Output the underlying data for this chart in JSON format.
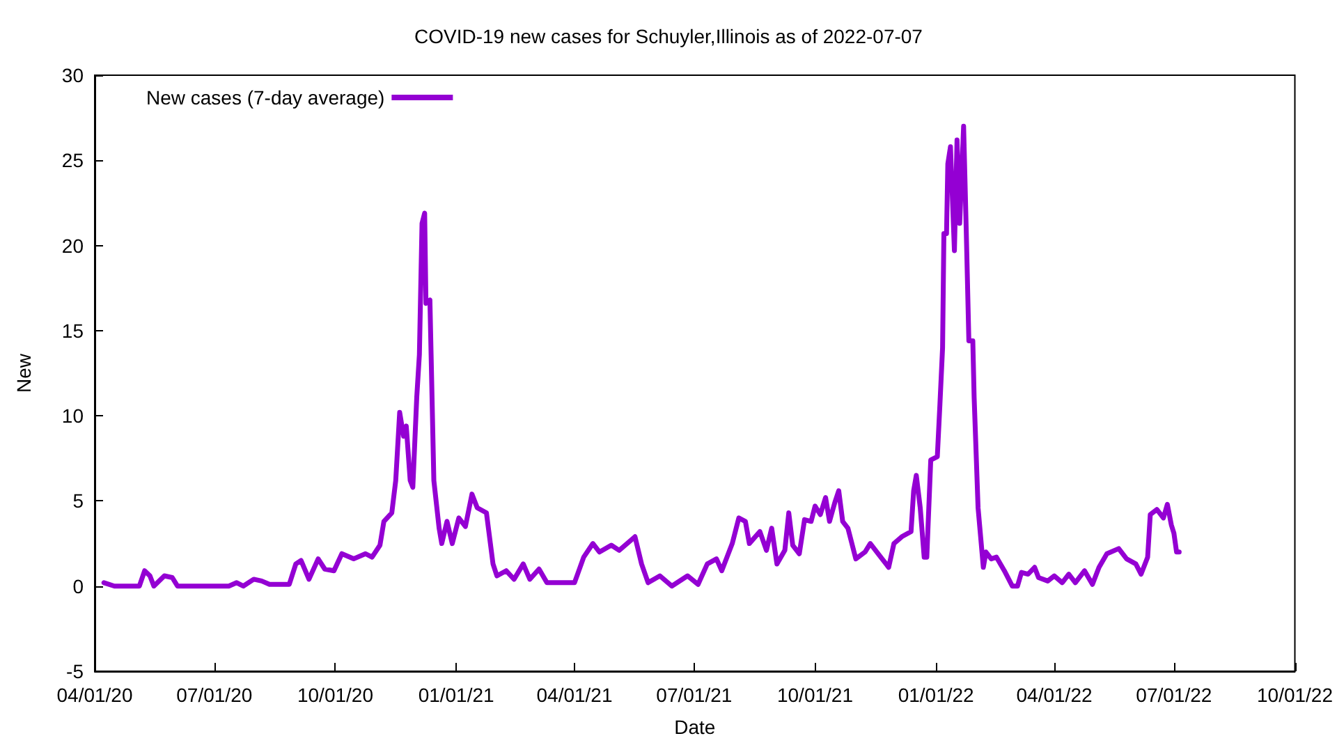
{
  "chart_data": {
    "type": "line",
    "title": "COVID-19 new cases for Schuyler,Illinois as of 2022-07-07",
    "xlabel": "Date",
    "ylabel": "New",
    "x": [
      "2020-04-08",
      "2020-04-16",
      "2020-05-05",
      "2020-05-09",
      "2020-05-13",
      "2020-05-16",
      "2020-05-24",
      "2020-05-30",
      "2020-06-03",
      "2020-07-12",
      "2020-07-18",
      "2020-07-23",
      "2020-07-31",
      "2020-08-06",
      "2020-08-12",
      "2020-08-27",
      "2020-09-01",
      "2020-09-05",
      "2020-09-11",
      "2020-09-18",
      "2020-09-23",
      "2020-09-30",
      "2020-10-06",
      "2020-10-15",
      "2020-10-24",
      "2020-10-29",
      "2020-11-04",
      "2020-11-07",
      "2020-11-13",
      "2020-11-16",
      "2020-11-19",
      "2020-11-22",
      "2020-11-24",
      "2020-11-27",
      "2020-11-29",
      "2020-12-02",
      "2020-12-04",
      "2020-12-06",
      "2020-12-08",
      "2020-12-09",
      "2020-12-12",
      "2020-12-15",
      "2020-12-19",
      "2020-12-21",
      "2020-12-25",
      "2020-12-29",
      "2021-01-03",
      "2021-01-08",
      "2021-01-13",
      "2021-01-17",
      "2021-01-24",
      "2021-01-29",
      "2021-02-01",
      "2021-02-08",
      "2021-02-14",
      "2021-02-21",
      "2021-02-26",
      "2021-03-05",
      "2021-03-11",
      "2021-03-22",
      "2021-04-01",
      "2021-04-08",
      "2021-04-15",
      "2021-04-20",
      "2021-04-29",
      "2021-05-05",
      "2021-05-17",
      "2021-05-22",
      "2021-05-27",
      "2021-06-05",
      "2021-06-14",
      "2021-06-26",
      "2021-07-04",
      "2021-07-11",
      "2021-07-18",
      "2021-07-22",
      "2021-07-30",
      "2021-08-04",
      "2021-08-09",
      "2021-08-12",
      "2021-08-20",
      "2021-08-25",
      "2021-08-29",
      "2021-09-02",
      "2021-09-08",
      "2021-09-11",
      "2021-09-14",
      "2021-09-19",
      "2021-09-23",
      "2021-09-28",
      "2021-10-01",
      "2021-10-05",
      "2021-10-09",
      "2021-10-12",
      "2021-10-16",
      "2021-10-19",
      "2021-10-22",
      "2021-10-26",
      "2021-11-01",
      "2021-11-08",
      "2021-11-12",
      "2021-11-17",
      "2021-11-21",
      "2021-11-26",
      "2021-11-30",
      "2021-12-06",
      "2021-12-13",
      "2021-12-15",
      "2021-12-17",
      "2021-12-20",
      "2021-12-23",
      "2021-12-25",
      "2021-12-28",
      "2022-01-02",
      "2022-01-04",
      "2022-01-06",
      "2022-01-07",
      "2022-01-09",
      "2022-01-10",
      "2022-01-12",
      "2022-01-15",
      "2022-01-17",
      "2022-01-19",
      "2022-01-22",
      "2022-01-24",
      "2022-01-26",
      "2022-01-29",
      "2022-01-30",
      "2022-02-02",
      "2022-02-06",
      "2022-02-08",
      "2022-02-12",
      "2022-02-16",
      "2022-02-22",
      "2022-02-28",
      "2022-03-04",
      "2022-03-07",
      "2022-03-12",
      "2022-03-17",
      "2022-03-20",
      "2022-03-27",
      "2022-04-01",
      "2022-04-07",
      "2022-04-12",
      "2022-04-17",
      "2022-04-24",
      "2022-04-30",
      "2022-05-05",
      "2022-05-11",
      "2022-05-20",
      "2022-05-26",
      "2022-06-02",
      "2022-06-06",
      "2022-06-11",
      "2022-06-13",
      "2022-06-18",
      "2022-06-23",
      "2022-06-26",
      "2022-06-29",
      "2022-07-01",
      "2022-07-03",
      "2022-07-05"
    ],
    "series": [
      {
        "name": "New cases (7-day average)",
        "color": "#9400d3",
        "values": [
          0.2,
          0,
          0,
          0.9,
          0.6,
          0,
          0.6,
          0.5,
          0,
          0,
          0.2,
          0,
          0.4,
          0.3,
          0.1,
          0.1,
          1.3,
          1.5,
          0.4,
          1.6,
          1.0,
          0.9,
          1.9,
          1.6,
          1.9,
          1.7,
          2.4,
          3.8,
          4.3,
          6.2,
          10.2,
          8.8,
          9.4,
          6.2,
          5.8,
          11.1,
          13.6,
          21.3,
          21.9,
          16.6,
          16.8,
          6.2,
          3.4,
          2.5,
          3.8,
          2.5,
          4.0,
          3.5,
          5.4,
          4.6,
          4.3,
          1.3,
          0.6,
          0.9,
          0.4,
          1.3,
          0.4,
          1.0,
          0.2,
          0.2,
          0.2,
          1.7,
          2.5,
          2.0,
          2.4,
          2.1,
          2.9,
          1.3,
          0.2,
          0.6,
          0,
          0.6,
          0.1,
          1.3,
          1.6,
          0.9,
          2.5,
          4.0,
          3.8,
          2.5,
          3.2,
          2.1,
          3.4,
          1.3,
          2.1,
          4.3,
          2.4,
          1.9,
          3.9,
          3.8,
          4.7,
          4.2,
          5.2,
          3.8,
          4.9,
          5.6,
          3.8,
          3.4,
          1.6,
          2.0,
          2.5,
          2.0,
          1.6,
          1.1,
          2.5,
          2.9,
          3.2,
          5.6,
          6.5,
          4.6,
          1.7,
          1.7,
          7.4,
          7.6,
          10.7,
          14.0,
          20.7,
          20.7,
          24.8,
          25.8,
          19.7,
          26.2,
          21.3,
          27.0,
          20.9,
          14.4,
          14.4,
          11.1,
          4.6,
          1.1,
          2.0,
          1.6,
          1.7,
          0.9,
          0,
          0,
          0.8,
          0.7,
          1.1,
          0.5,
          0.3,
          0.6,
          0.2,
          0.7,
          0.2,
          0.9,
          0.1,
          1.1,
          1.9,
          2.2,
          1.6,
          1.3,
          0.7,
          1.7,
          4.2,
          4.5,
          4.0,
          4.8,
          3.6,
          3.1,
          2.0,
          2.0
        ]
      }
    ],
    "xlim": [
      "2020-04-01",
      "2022-10-01"
    ],
    "xticks": [
      {
        "value": "2020-04-01",
        "label": "04/01/20"
      },
      {
        "value": "2020-07-01",
        "label": "07/01/20"
      },
      {
        "value": "2020-10-01",
        "label": "10/01/20"
      },
      {
        "value": "2021-01-01",
        "label": "01/01/21"
      },
      {
        "value": "2021-04-01",
        "label": "04/01/21"
      },
      {
        "value": "2021-07-01",
        "label": "07/01/21"
      },
      {
        "value": "2021-10-01",
        "label": "10/01/21"
      },
      {
        "value": "2022-01-01",
        "label": "01/01/22"
      },
      {
        "value": "2022-04-01",
        "label": "04/01/22"
      },
      {
        "value": "2022-07-01",
        "label": "07/01/22"
      },
      {
        "value": "2022-10-01",
        "label": "10/01/22"
      }
    ],
    "ylim": [
      -5,
      30
    ],
    "yticks": [
      -5,
      0,
      5,
      10,
      15,
      20,
      25,
      30
    ],
    "grid": false,
    "legend": "top left",
    "marker": "none",
    "line_style": "solid"
  }
}
